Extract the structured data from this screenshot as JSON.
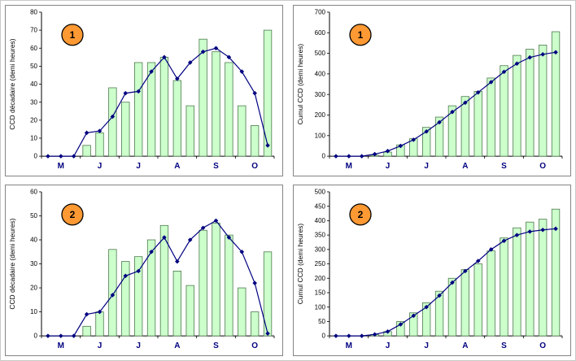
{
  "page": {
    "background": "#ffffff",
    "panel_border": "#848484"
  },
  "colors": {
    "bar_fill": "#ccffcc",
    "bar_stroke": "#4d784d",
    "line": "#000080",
    "marker": "#000080",
    "axis": "#000000",
    "y_tick_label": "#000000",
    "x_tick_label": "#000080",
    "badge_fill": "#ff9933",
    "badge_stroke": "#000000",
    "badge_text": "#000000"
  },
  "chart_data": [
    {
      "type": "bar",
      "subtype": "bar+line",
      "position": "top-left",
      "badge": "1",
      "title": "",
      "xlabel": "",
      "ylabel": "CCD décadaire (demi heures)",
      "ylim": [
        0,
        80
      ],
      "yticks": [
        0,
        10,
        20,
        30,
        40,
        50,
        60,
        70,
        80
      ],
      "categories": [
        "M",
        "J",
        "J",
        "A",
        "S",
        "O"
      ],
      "grid": false,
      "legend": "none",
      "bars": [
        0,
        0,
        0,
        6,
        13,
        38,
        30,
        52,
        52,
        55,
        42,
        28,
        65,
        58,
        52,
        28,
        17,
        70
      ],
      "line": [
        0,
        0,
        0,
        13,
        14,
        22,
        35,
        36,
        47,
        55,
        43,
        52,
        58,
        60,
        55,
        47,
        35,
        6
      ]
    },
    {
      "type": "bar",
      "subtype": "bar+line",
      "position": "top-right",
      "badge": "1",
      "title": "",
      "xlabel": "",
      "ylabel": "Cumul CCD (demi heures)",
      "ylim": [
        0,
        700
      ],
      "yticks": [
        0,
        100,
        200,
        300,
        400,
        500,
        600,
        700
      ],
      "categories": [
        "M",
        "J",
        "J",
        "A",
        "S",
        "O"
      ],
      "grid": false,
      "legend": "none",
      "bars": [
        0,
        0,
        0,
        5,
        20,
        55,
        85,
        140,
        190,
        245,
        290,
        315,
        380,
        440,
        490,
        520,
        540,
        605
      ],
      "line": [
        0,
        0,
        0,
        10,
        25,
        50,
        80,
        120,
        165,
        215,
        260,
        310,
        360,
        410,
        450,
        480,
        495,
        505
      ]
    },
    {
      "type": "bar",
      "subtype": "bar+line",
      "position": "bottom-left",
      "badge": "2",
      "title": "",
      "xlabel": "",
      "ylabel": "CCD décadaire (demi heures)",
      "ylim": [
        0,
        60
      ],
      "yticks": [
        0,
        10,
        20,
        30,
        40,
        50,
        60
      ],
      "categories": [
        "M",
        "J",
        "J",
        "A",
        "S",
        "O"
      ],
      "grid": false,
      "legend": "none",
      "bars": [
        0,
        0,
        0,
        4,
        10,
        36,
        31,
        33,
        40,
        46,
        27,
        21,
        44,
        47,
        42,
        20,
        10,
        35
      ],
      "line": [
        0,
        0,
        0,
        9,
        10,
        17,
        25,
        27,
        35,
        41,
        31,
        40,
        45,
        48,
        41,
        35,
        22,
        1
      ]
    },
    {
      "type": "bar",
      "subtype": "bar+line",
      "position": "bottom-right",
      "badge": "2",
      "title": "",
      "xlabel": "",
      "ylabel": "Cumul CCD (demi heures)",
      "ylim": [
        0,
        500
      ],
      "yticks": [
        0,
        50,
        100,
        150,
        200,
        250,
        300,
        350,
        400,
        450,
        500
      ],
      "categories": [
        "M",
        "J",
        "J",
        "A",
        "S",
        "O"
      ],
      "grid": false,
      "legend": "none",
      "bars": [
        0,
        0,
        0,
        5,
        15,
        50,
        80,
        115,
        155,
        200,
        230,
        250,
        295,
        340,
        375,
        395,
        405,
        440
      ],
      "line": [
        0,
        0,
        0,
        5,
        15,
        40,
        70,
        100,
        140,
        185,
        225,
        260,
        300,
        330,
        350,
        362,
        368,
        372
      ]
    }
  ]
}
